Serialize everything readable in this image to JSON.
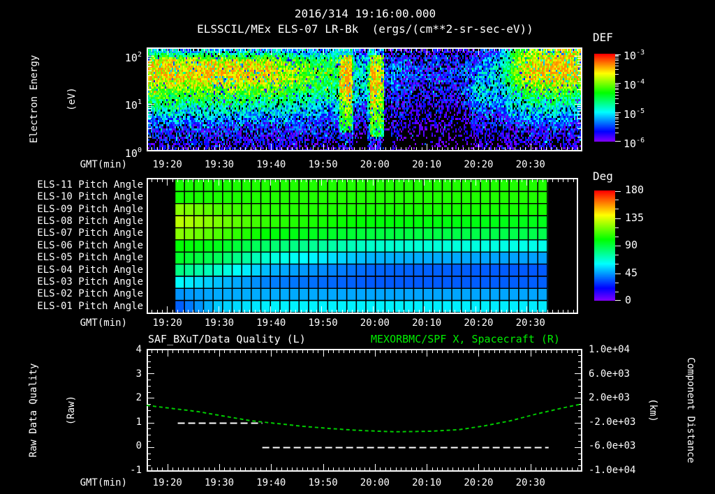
{
  "header": {
    "title_datetime": "2016/314 19:16:00.000",
    "title_instrument": "ELSSCIL/MEx ELS-07 LR-Bk  (ergs/(cm**2-sr-sec-eV))"
  },
  "time_axis": {
    "label": "GMT(min)",
    "start_time": "19:16",
    "span_min": 84,
    "tick_labels": [
      "19:20",
      "19:30",
      "19:40",
      "19:50",
      "20:00",
      "20:10",
      "20:20",
      "20:30"
    ]
  },
  "spectrogram_panel": {
    "ylabel_line1": "Electron Energy",
    "ylabel_line2": "(eV)",
    "ytick_exponents": [
      {
        "base": "10",
        "exp": "2"
      },
      {
        "base": "10",
        "exp": "1"
      },
      {
        "base": "10",
        "exp": "0"
      }
    ],
    "colorbar_title": "DEF",
    "colorbar_ticks": [
      {
        "base": "10",
        "exp": "-3"
      },
      {
        "base": "10",
        "exp": "-4"
      },
      {
        "base": "10",
        "exp": "-5"
      },
      {
        "base": "10",
        "exp": "-6"
      }
    ]
  },
  "pitch_panel": {
    "row_labels": [
      "ELS-11 Pitch Angle",
      "ELS-10 Pitch Angle",
      "ELS-09 Pitch Angle",
      "ELS-08 Pitch Angle",
      "ELS-07 Pitch Angle",
      "ELS-06 Pitch Angle",
      "ELS-05 Pitch Angle",
      "ELS-04 Pitch Angle",
      "ELS-03 Pitch Angle",
      "ELS-02 Pitch Angle",
      "ELS-01 Pitch Angle"
    ],
    "colorbar_title": "Deg",
    "colorbar_ticks": [
      "180",
      "135",
      "90",
      "45",
      "0"
    ]
  },
  "line_panel": {
    "title_left": "SAF_BXuT/Data Quality (L)",
    "title_right": "MEXORBMC/SPF X, Spacecraft (R)",
    "ylabel_left_line1": "Raw Data Quality",
    "ylabel_left_line2": "(Raw)",
    "ylabel_right_line1": "Component Distance",
    "ylabel_right_line2": "(km)",
    "yticks_left": [
      "4",
      "3",
      "2",
      "1",
      "0",
      "-1"
    ],
    "yticks_right": [
      "1.0e+04",
      "6.0e+03",
      "2.0e+03",
      "-2.0e+03",
      "-6.0e+03",
      "-1.0e+04"
    ]
  },
  "colors": {
    "background": "#000000",
    "text": "#ffffff",
    "series_right_green": "#00cc00",
    "colormap": "rainbow violet(low) to red(high)"
  },
  "chart_data": [
    {
      "type": "heatmap",
      "name": "electron energy spectrogram",
      "x_axis": {
        "label": "GMT(min)",
        "start": "19:16",
        "end": "20:40",
        "minutes_span": 84,
        "tick_labels": [
          "19:20",
          "19:30",
          "19:40",
          "19:50",
          "20:00",
          "20:10",
          "20:20",
          "20:30"
        ]
      },
      "y_axis": {
        "label": "Electron Energy (eV)",
        "scale": "log",
        "range_log10": [
          0,
          2.18
        ]
      },
      "colorbar": {
        "label": "DEF",
        "units": "ergs/(cm**2-sr-sec-eV)",
        "range_log10": [
          -6,
          -3
        ]
      },
      "grid_minutes": [
        0,
        4,
        8,
        12,
        16,
        20,
        24,
        28,
        32,
        36,
        40,
        44,
        48,
        52,
        56,
        60,
        64,
        68,
        72,
        76,
        80,
        84
      ],
      "grid_log10_energy_rows": [
        2.1,
        1.9,
        1.7,
        1.5,
        1.3,
        1.1,
        0.9,
        0.7,
        0.5,
        0.3,
        0.1
      ],
      "grid_log10_def": [
        [
          -5.0,
          -5.0,
          -5.2,
          -5.0,
          -5.2,
          -5.0,
          -5.2,
          -5.3,
          -5.4,
          -5.2,
          -4.8,
          -5.2,
          -5.8,
          -6.0,
          -5.8,
          -6.0,
          -5.8,
          -5.5,
          -4.3,
          -3.9,
          -3.8,
          -3.9
        ],
        [
          -3.8,
          -3.7,
          -3.8,
          -3.7,
          -3.8,
          -3.8,
          -3.9,
          -4.1,
          -4.4,
          -4.6,
          -4.4,
          -4.8,
          -5.6,
          -5.8,
          -5.7,
          -5.9,
          -5.5,
          -5.2,
          -3.9,
          -3.6,
          -3.5,
          -3.7
        ],
        [
          -3.6,
          -3.5,
          -3.6,
          -3.5,
          -3.6,
          -3.6,
          -3.7,
          -3.9,
          -4.2,
          -4.4,
          -4.2,
          -4.6,
          -5.4,
          -5.6,
          -5.6,
          -5.7,
          -5.3,
          -5.0,
          -3.8,
          -3.5,
          -3.5,
          -3.6
        ],
        [
          -3.7,
          -3.6,
          -3.7,
          -3.6,
          -3.7,
          -3.7,
          -3.8,
          -4.0,
          -4.3,
          -4.5,
          -4.2,
          -4.5,
          -5.5,
          -5.7,
          -5.6,
          -5.8,
          -5.2,
          -5.1,
          -4.0,
          -3.7,
          -3.6,
          -3.8
        ],
        [
          -4.1,
          -4.0,
          -4.1,
          -4.0,
          -4.1,
          -4.1,
          -4.2,
          -4.3,
          -4.5,
          -4.7,
          -4.3,
          -4.6,
          -5.6,
          -5.8,
          -5.7,
          -5.8,
          -5.0,
          -5.2,
          -4.4,
          -4.2,
          -4.1,
          -4.3
        ],
        [
          -4.5,
          -4.4,
          -4.5,
          -4.4,
          -4.5,
          -4.5,
          -4.6,
          -4.7,
          -4.8,
          -5.0,
          -4.5,
          -4.8,
          -5.7,
          -5.9,
          -5.8,
          -5.9,
          -5.1,
          -5.3,
          -4.8,
          -4.6,
          -4.6,
          -4.7
        ],
        [
          -4.9,
          -4.8,
          -4.9,
          -4.8,
          -4.9,
          -4.9,
          -5.0,
          -5.0,
          -5.1,
          -5.3,
          -4.7,
          -5.0,
          -5.8,
          -6.0,
          -5.9,
          -6.0,
          -5.4,
          -5.4,
          -5.1,
          -5.0,
          -5.0,
          -5.1
        ],
        [
          -5.3,
          -5.2,
          -5.3,
          -5.2,
          -5.3,
          -5.3,
          -5.3,
          -5.3,
          -5.4,
          -5.5,
          -4.9,
          -5.2,
          -5.9,
          -6.1,
          -6.0,
          -6.1,
          -5.7,
          -5.6,
          -5.4,
          -5.3,
          -5.3,
          -5.4
        ],
        [
          -5.6,
          -5.5,
          -5.6,
          -5.5,
          -5.6,
          -5.6,
          -5.6,
          -5.6,
          -5.6,
          -5.7,
          -5.2,
          -5.4,
          -6.0,
          -6.2,
          -6.1,
          -6.2,
          -5.9,
          -5.8,
          -5.7,
          -5.6,
          -5.6,
          -5.7
        ],
        [
          -5.8,
          -5.8,
          -5.8,
          -5.8,
          -5.8,
          -5.8,
          -5.8,
          -5.8,
          -5.8,
          -5.9,
          -5.5,
          -5.6,
          -6.1,
          -6.3,
          -6.2,
          -6.3,
          -6.0,
          -6.0,
          -5.9,
          -5.8,
          -5.9,
          -5.9
        ],
        [
          -6.0,
          -6.0,
          -6.0,
          -6.0,
          -6.0,
          -6.0,
          -6.0,
          -6.0,
          -6.0,
          -6.1,
          -5.8,
          -5.8,
          -6.2,
          -6.4,
          -6.3,
          -6.4,
          -6.2,
          -6.2,
          -6.1,
          -6.0,
          -6.1,
          -6.1
        ]
      ],
      "features": [
        {
          "t_min": [
            37.2,
            39.6
          ],
          "log10_e": [
            0.4,
            2.0
          ],
          "delta": 0.9
        },
        {
          "t_min": [
            39.9,
            42.6
          ],
          "log10_e": [
            0.0,
            2.18
          ],
          "delta": -0.7
        },
        {
          "t_min": [
            43.0,
            45.8
          ],
          "log10_e": [
            0.3,
            2.0
          ],
          "delta": 1.1
        },
        {
          "t_min": [
            45.9,
            47.2
          ],
          "log10_e": [
            0.0,
            2.18
          ],
          "delta": -0.5
        }
      ]
    },
    {
      "type": "heatmap",
      "name": "pitch angle per anode",
      "colorbar": {
        "label": "Deg",
        "range": [
          0,
          180
        ]
      },
      "time_range_min": [
        5.5,
        78
      ],
      "columns": 39,
      "keyframe_minutes": [
        6,
        14,
        24,
        44,
        77
      ],
      "rows": [
        {
          "label": "ELS-11 Pitch Angle",
          "deg": [
            104,
            104,
            105,
            105,
            105
          ]
        },
        {
          "label": "ELS-10 Pitch Angle",
          "deg": [
            103,
            104,
            105,
            105,
            105
          ]
        },
        {
          "label": "ELS-09 Pitch Angle",
          "deg": [
            122,
            112,
            106,
            104,
            103
          ]
        },
        {
          "label": "ELS-08 Pitch Angle",
          "deg": [
            130,
            119,
            107,
            99,
            96
          ]
        },
        {
          "label": "ELS-07 Pitch Angle",
          "deg": [
            122,
            112,
            99,
            90,
            88
          ]
        },
        {
          "label": "ELS-06 Pitch Angle",
          "deg": [
            100,
            96,
            83,
            68,
            63
          ]
        },
        {
          "label": "ELS-05 Pitch Angle",
          "deg": [
            94,
            86,
            66,
            48,
            45
          ]
        },
        {
          "label": "ELS-04 Pitch Angle",
          "deg": [
            80,
            68,
            48,
            36,
            34
          ]
        },
        {
          "label": "ELS-03 Pitch Angle",
          "deg": [
            60,
            50,
            40,
            34,
            35
          ]
        },
        {
          "label": "ELS-02 Pitch Angle",
          "deg": [
            43,
            47,
            47,
            46,
            46
          ]
        },
        {
          "label": "ELS-01 Pitch Angle",
          "deg": [
            34,
            52,
            58,
            58,
            57
          ]
        }
      ]
    },
    {
      "type": "line",
      "name": "data quality and spacecraft X distance",
      "left_axis": {
        "label": "Raw Data Quality (Raw)",
        "range": [
          -1,
          4
        ]
      },
      "right_axis": {
        "label": "Component Distance (km)",
        "range": [
          -10000,
          10000
        ]
      },
      "series": [
        {
          "name": "SAF_BXuT/Data Quality (L)",
          "axis": "left",
          "color": "#ffffff",
          "style": "dashed",
          "segments": [
            {
              "t_min": [
                6,
                22.3
              ],
              "value": 1
            },
            {
              "t_min": [
                22.3,
                77.5
              ],
              "value": 0
            }
          ]
        },
        {
          "name": "MEXORBMC/SPF X, Spacecraft (R)",
          "axis": "right",
          "color": "#00cc00",
          "style": "dashed",
          "points_t_min": [
            0,
            5,
            10,
            15,
            20,
            25,
            30,
            35,
            40,
            45,
            48,
            50,
            55,
            60,
            65,
            70,
            75,
            80,
            84
          ],
          "points_km": [
            800,
            290,
            -230,
            -970,
            -1690,
            -2150,
            -2600,
            -2950,
            -3240,
            -3420,
            -3490,
            -3480,
            -3410,
            -3180,
            -2560,
            -1740,
            -640,
            340,
            1050
          ]
        }
      ]
    }
  ]
}
